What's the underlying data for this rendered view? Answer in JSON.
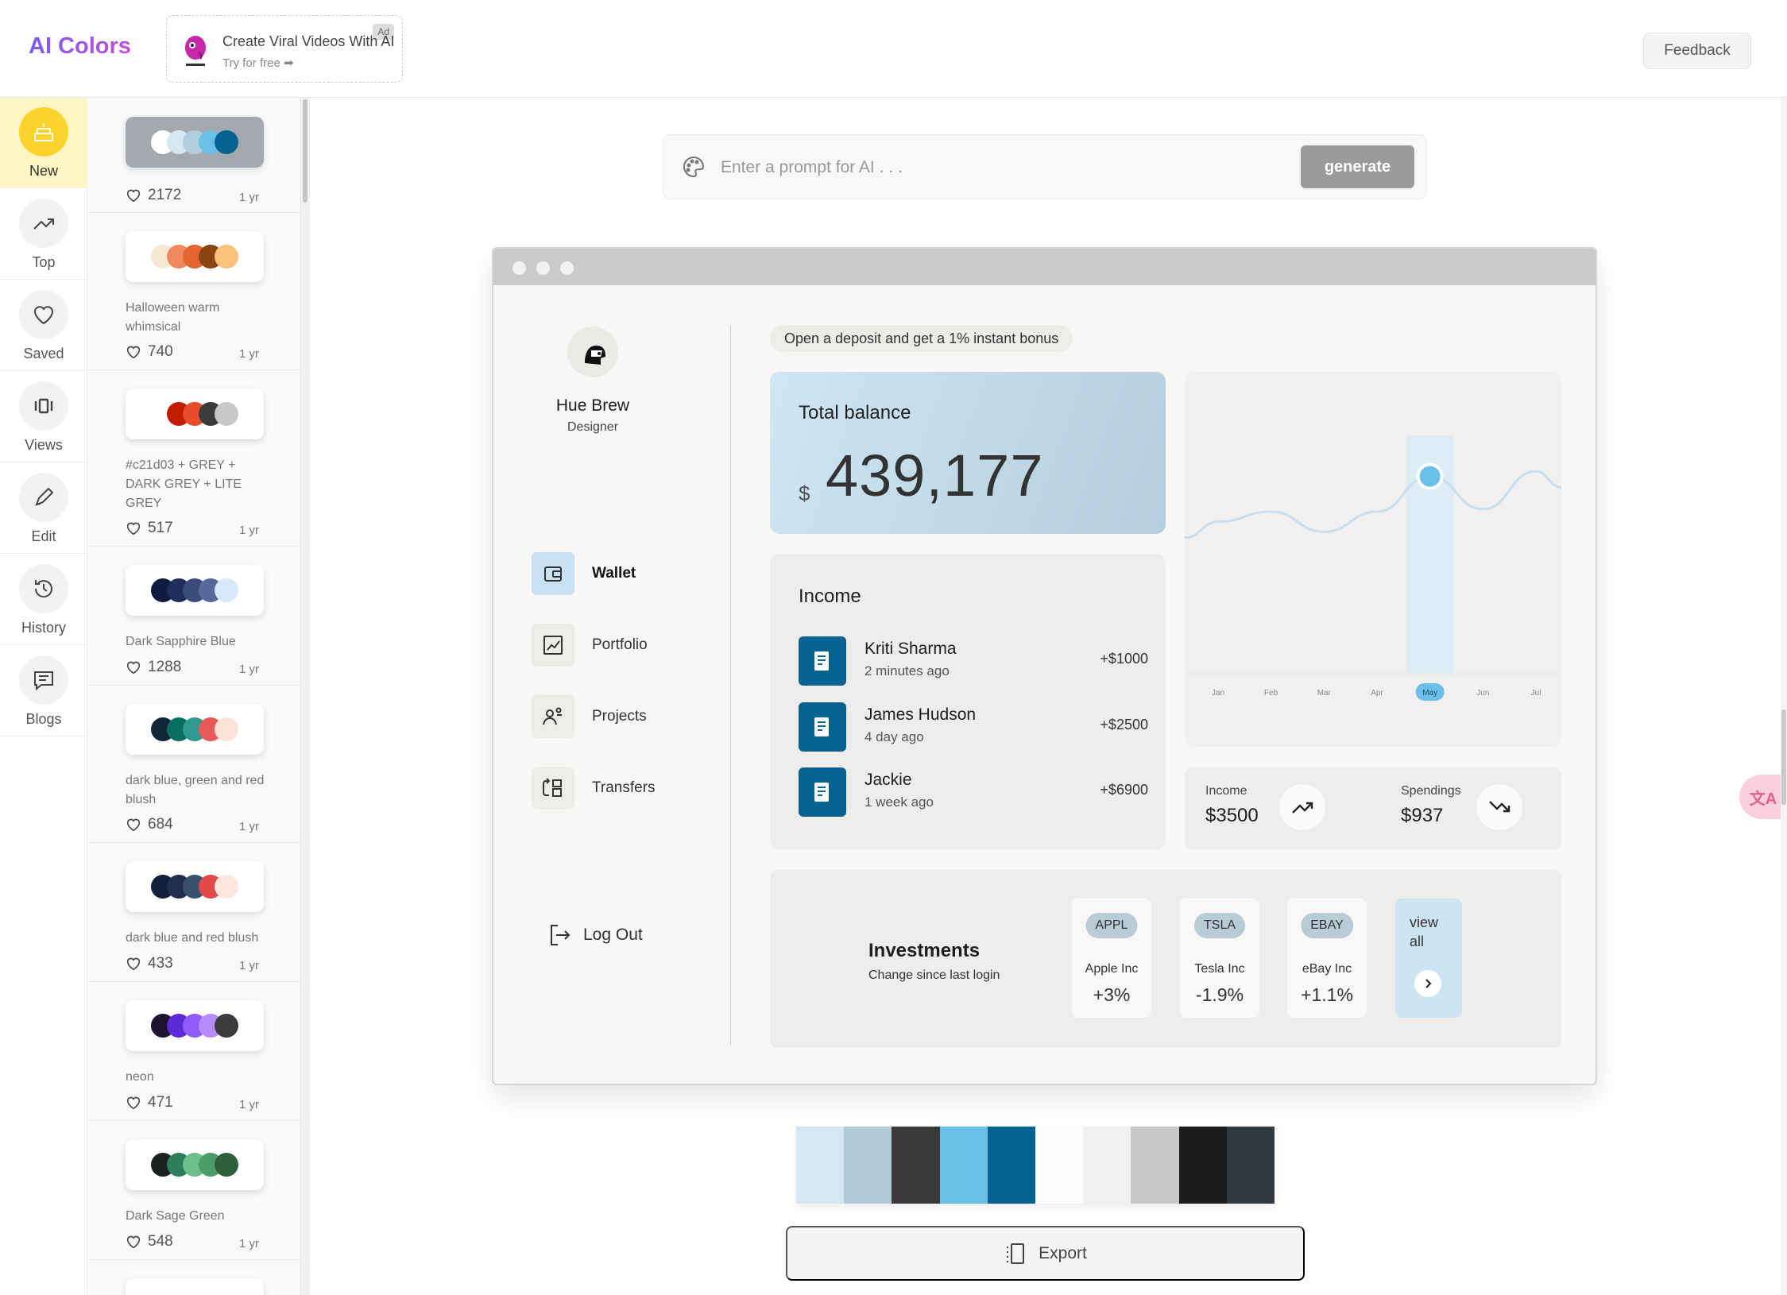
{
  "app": {
    "logo": "AI Colors",
    "feedback": "Feedback"
  },
  "ad": {
    "tag": "Ad",
    "title": "Create Viral Videos With AI",
    "subtitle": "Try for free ➡"
  },
  "nav": {
    "items": [
      {
        "label": "New",
        "icon": "cake-icon",
        "active": true
      },
      {
        "label": "Top",
        "icon": "trending-up-icon"
      },
      {
        "label": "Saved",
        "icon": "heart-icon"
      },
      {
        "label": "Views",
        "icon": "carousel-icon"
      },
      {
        "label": "Edit",
        "icon": "pencil-icon"
      },
      {
        "label": "History",
        "icon": "history-icon"
      },
      {
        "label": "Blogs",
        "icon": "message-icon"
      }
    ]
  },
  "palettes": [
    {
      "name": "",
      "likes": "2172",
      "age": "1 yr",
      "colors": [
        "#ffffff",
        "#d4e8f3",
        "#b2cfe0",
        "#6bc0ea",
        "#066391"
      ],
      "dark": true
    },
    {
      "name": "Halloween warm whimsical",
      "likes": "740",
      "age": "1 yr",
      "colors": [
        "#f6e7d3",
        "#f08a5d",
        "#e2652f",
        "#8b4513",
        "#fcc27d"
      ]
    },
    {
      "name": "#c21d03 + GREY + DARK GREY + LITE GREY",
      "likes": "517",
      "age": "1 yr",
      "colors": [
        "#ffffff",
        "#c21d03",
        "#e74c2b",
        "#3b3b3b",
        "#c8c8c8"
      ]
    },
    {
      "name": "Dark Sapphire Blue",
      "likes": "1288",
      "age": "1 yr",
      "colors": [
        "#0f1c3f",
        "#1f2e5a",
        "#3b4c7a",
        "#556a9a",
        "#d6e8fa"
      ]
    },
    {
      "name": "dark blue, green and red blush",
      "likes": "684",
      "age": "1 yr",
      "colors": [
        "#12263a",
        "#0b6e63",
        "#2f9b8f",
        "#e85a5a",
        "#fde3d6"
      ]
    },
    {
      "name": "dark blue and red blush",
      "likes": "433",
      "age": "1 yr",
      "colors": [
        "#14213d",
        "#1f2f4d",
        "#3a4e6e",
        "#e24a4a",
        "#fde6dd"
      ]
    },
    {
      "name": "neon",
      "likes": "471",
      "age": "1 yr",
      "colors": [
        "#1c1333",
        "#5b2bd8",
        "#8f5cf7",
        "#b98afc",
        "#3b3b3b"
      ]
    },
    {
      "name": "Dark Sage Green",
      "likes": "548",
      "age": "1 yr",
      "colors": [
        "#1b2020",
        "#2e7d5b",
        "#6dbf8a",
        "#4c9c6a",
        "#2f5e3a"
      ]
    }
  ],
  "prompt": {
    "placeholder": "Enter a prompt for AI . . .",
    "button": "generate"
  },
  "preview": {
    "user": {
      "name": "Hue Brew",
      "role": "Designer"
    },
    "menu": [
      {
        "label": "Wallet",
        "active": true
      },
      {
        "label": "Portfolio"
      },
      {
        "label": "Projects"
      },
      {
        "label": "Transfers"
      }
    ],
    "logout": "Log Out",
    "promo": "Open a deposit and get a 1% instant bonus",
    "balance": {
      "title": "Total balance",
      "currency": "$",
      "value": "439,177"
    },
    "income": {
      "title": "Income",
      "rows": [
        {
          "name": "Kriti Sharma",
          "time": "2 minutes ago",
          "amount": "+$1000"
        },
        {
          "name": "James Hudson",
          "time": "4 day ago",
          "amount": "+$2500"
        },
        {
          "name": "Jackie",
          "time": "1 week ago",
          "amount": "+$6900"
        }
      ]
    },
    "stats": {
      "income_label": "Income",
      "income_value": "$3500",
      "spend_label": "Spendings",
      "spend_value": "$937"
    },
    "investments": {
      "title": "Investments",
      "subtitle": "Change since last login",
      "stocks": [
        {
          "ticker": "APPL",
          "name": "Apple Inc",
          "change": "+3%"
        },
        {
          "ticker": "TSLA",
          "name": "Tesla Inc",
          "change": "-1.9%"
        },
        {
          "ticker": "EBAY",
          "name": "eBay Inc",
          "change": "+1.1%"
        }
      ],
      "view_all": "view all"
    }
  },
  "chart_data": {
    "type": "line",
    "categories": [
      "Jan",
      "Feb",
      "Mar",
      "Apr",
      "May",
      "Jun",
      "Jul"
    ],
    "values": [
      3.2,
      3.6,
      2.8,
      3.6,
      5.0,
      3.7,
      5.2
    ],
    "highlight": "May",
    "grid": false,
    "color": "#6bc0ea"
  },
  "export_palette": [
    "#d4e8f3",
    "#b2cad8",
    "#3a3a3a",
    "#6bc0ea",
    "#066391",
    "#fbfbfb",
    "#f0f0ef",
    "#c9c8c6",
    "#1c1c1c",
    "#2f3a40"
  ],
  "export": {
    "label": "Export"
  },
  "translate": {
    "label": "文A"
  }
}
